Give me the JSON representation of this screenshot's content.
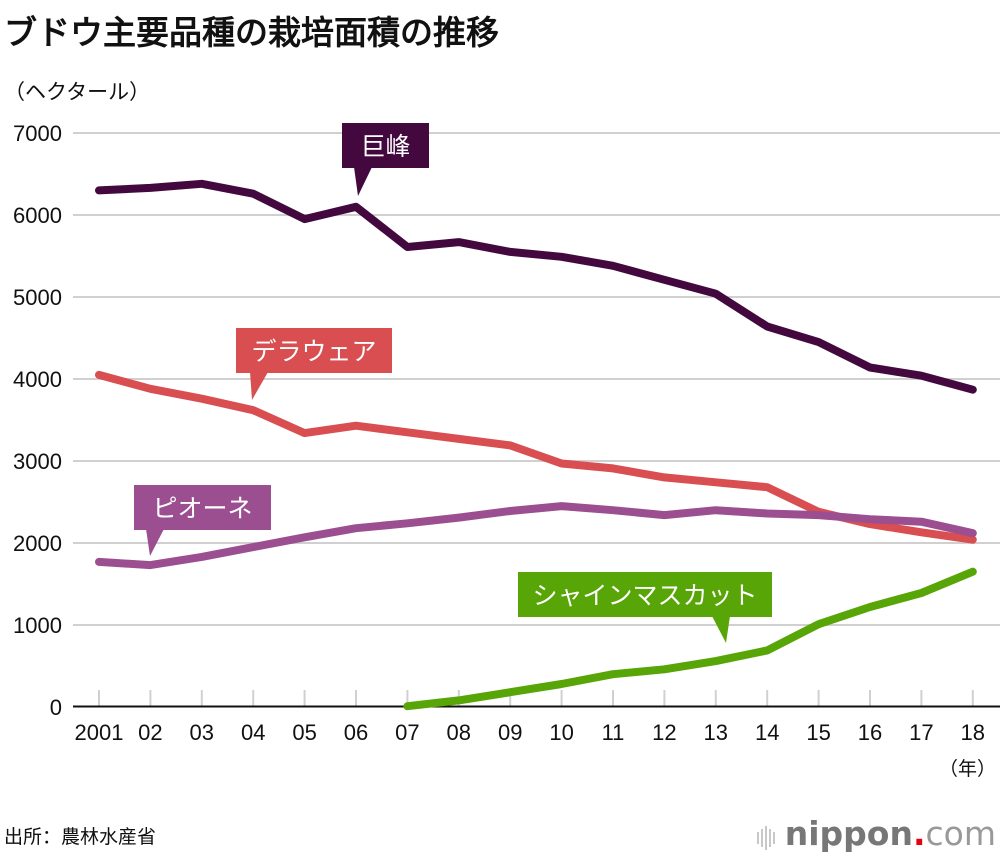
{
  "header": {
    "title": "ブドウ主要品種の栽培面積の推移",
    "unit": "（ヘクタール）"
  },
  "footer": {
    "source": "出所：農林水産省",
    "logo_name": "nippon",
    "logo_dot": ".",
    "logo_suffix": "com"
  },
  "chart_data": {
    "type": "line",
    "title": "ブドウ主要品種の栽培面積の推移",
    "ylabel": "（ヘクタール）",
    "xlabel": "（年）",
    "ylim": [
      0,
      7000
    ],
    "yticks": [
      0,
      1000,
      2000,
      3000,
      4000,
      5000,
      6000,
      7000
    ],
    "grid": true,
    "legend": "inline-callouts",
    "x": [
      "2001",
      "02",
      "03",
      "04",
      "05",
      "06",
      "07",
      "08",
      "09",
      "10",
      "11",
      "12",
      "13",
      "14",
      "15",
      "16",
      "17",
      "18"
    ],
    "series": [
      {
        "name": "巨峰",
        "color": "#43093f",
        "callout_at": "06",
        "values": [
          6300,
          6330,
          6380,
          6260,
          5950,
          6100,
          5610,
          5670,
          5550,
          5490,
          5380,
          5210,
          5040,
          4640,
          4450,
          4140,
          4040,
          3870
        ]
      },
      {
        "name": "デラウェア",
        "color": "#d94f51",
        "callout_at": "04",
        "values": [
          4050,
          3880,
          3760,
          3620,
          3340,
          3430,
          3350,
          3270,
          3190,
          2970,
          2910,
          2800,
          2740,
          2680,
          2380,
          2230,
          2130,
          2040
        ]
      },
      {
        "name": "ピオーネ",
        "color": "#9b4f91",
        "callout_at": "02",
        "values": [
          1770,
          1730,
          1830,
          1950,
          2070,
          2180,
          2240,
          2310,
          2390,
          2450,
          2400,
          2340,
          2400,
          2360,
          2340,
          2290,
          2260,
          2120
        ]
      },
      {
        "name": "シャインマスカット",
        "color": "#58a507",
        "callout_at": "13",
        "values": [
          null,
          null,
          null,
          null,
          null,
          null,
          10,
          80,
          180,
          280,
          400,
          460,
          560,
          690,
          1010,
          1220,
          1390,
          1650
        ]
      }
    ]
  }
}
